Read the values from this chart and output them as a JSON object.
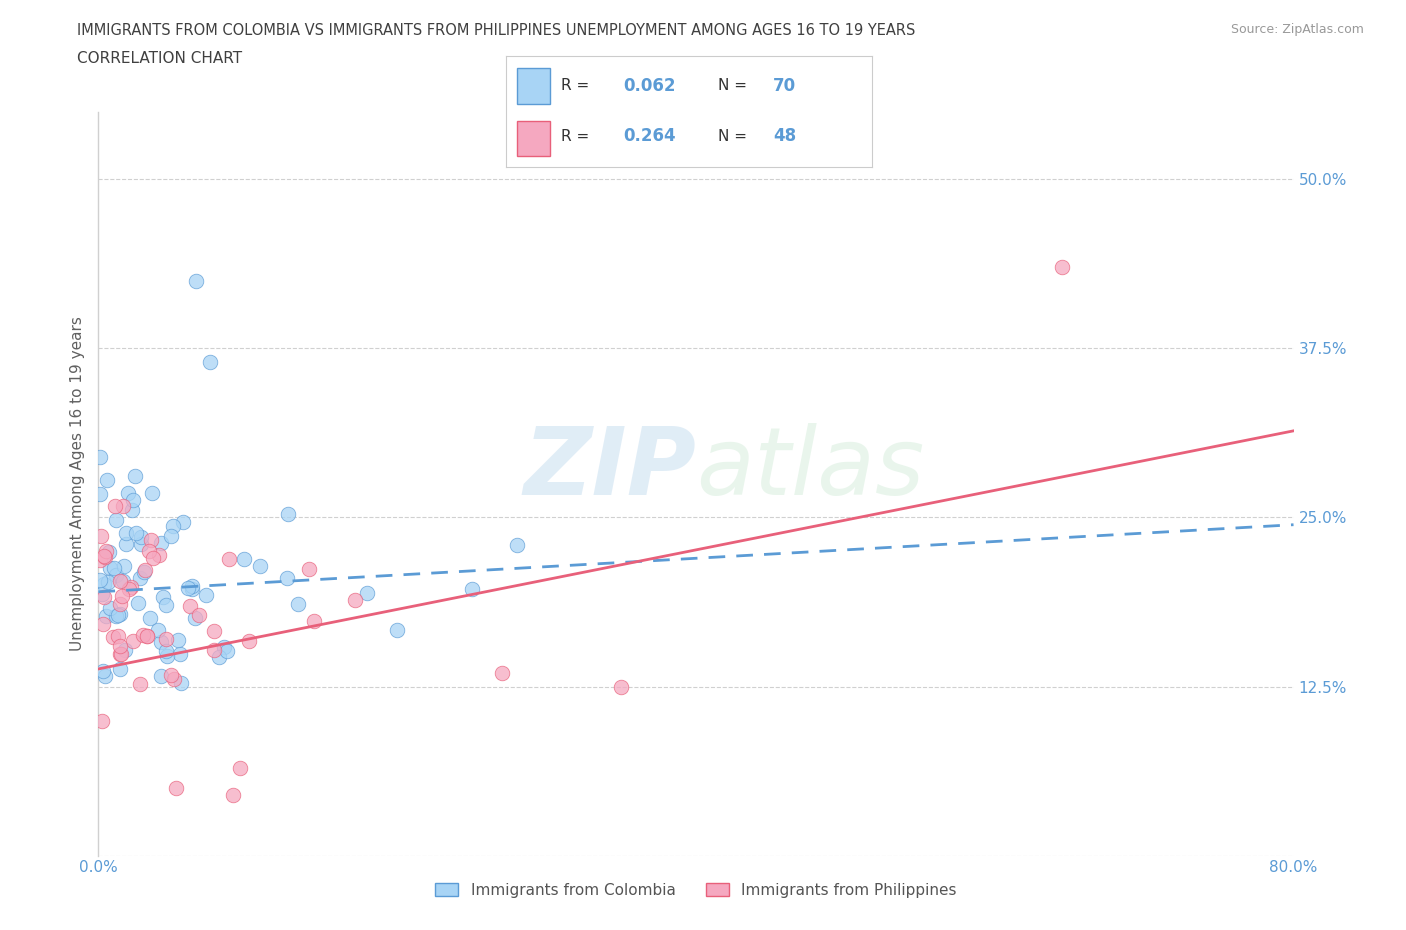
{
  "title": "IMMIGRANTS FROM COLOMBIA VS IMMIGRANTS FROM PHILIPPINES UNEMPLOYMENT AMONG AGES 16 TO 19 YEARS",
  "subtitle": "CORRELATION CHART",
  "source": "Source: ZipAtlas.com",
  "ylabel": "Unemployment Among Ages 16 to 19 years",
  "legend_label_1": "Immigrants from Colombia",
  "legend_label_2": "Immigrants from Philippines",
  "r1": 0.062,
  "n1": 70,
  "r2": 0.264,
  "n2": 48,
  "color1": "#a8d4f5",
  "color2": "#f5a8c0",
  "line_color1": "#5b9bd5",
  "line_color2": "#e8607a",
  "xmin": 0.0,
  "xmax": 0.8,
  "ymin": 0.0,
  "ymax": 0.55,
  "xticks": [
    0.0,
    0.1,
    0.2,
    0.3,
    0.4,
    0.5,
    0.6,
    0.7,
    0.8
  ],
  "xtick_labels": [
    "0.0%",
    "",
    "",
    "",
    "",
    "",
    "",
    "",
    "80.0%"
  ],
  "yticks": [
    0.0,
    0.125,
    0.25,
    0.375,
    0.5
  ],
  "ytick_labels": [
    "",
    "12.5%",
    "25.0%",
    "37.5%",
    "50.0%"
  ],
  "background_color": "#ffffff",
  "grid_color": "#d0d0d0",
  "title_color": "#404040",
  "tick_color": "#5b9bd5",
  "ylabel_color": "#606060"
}
